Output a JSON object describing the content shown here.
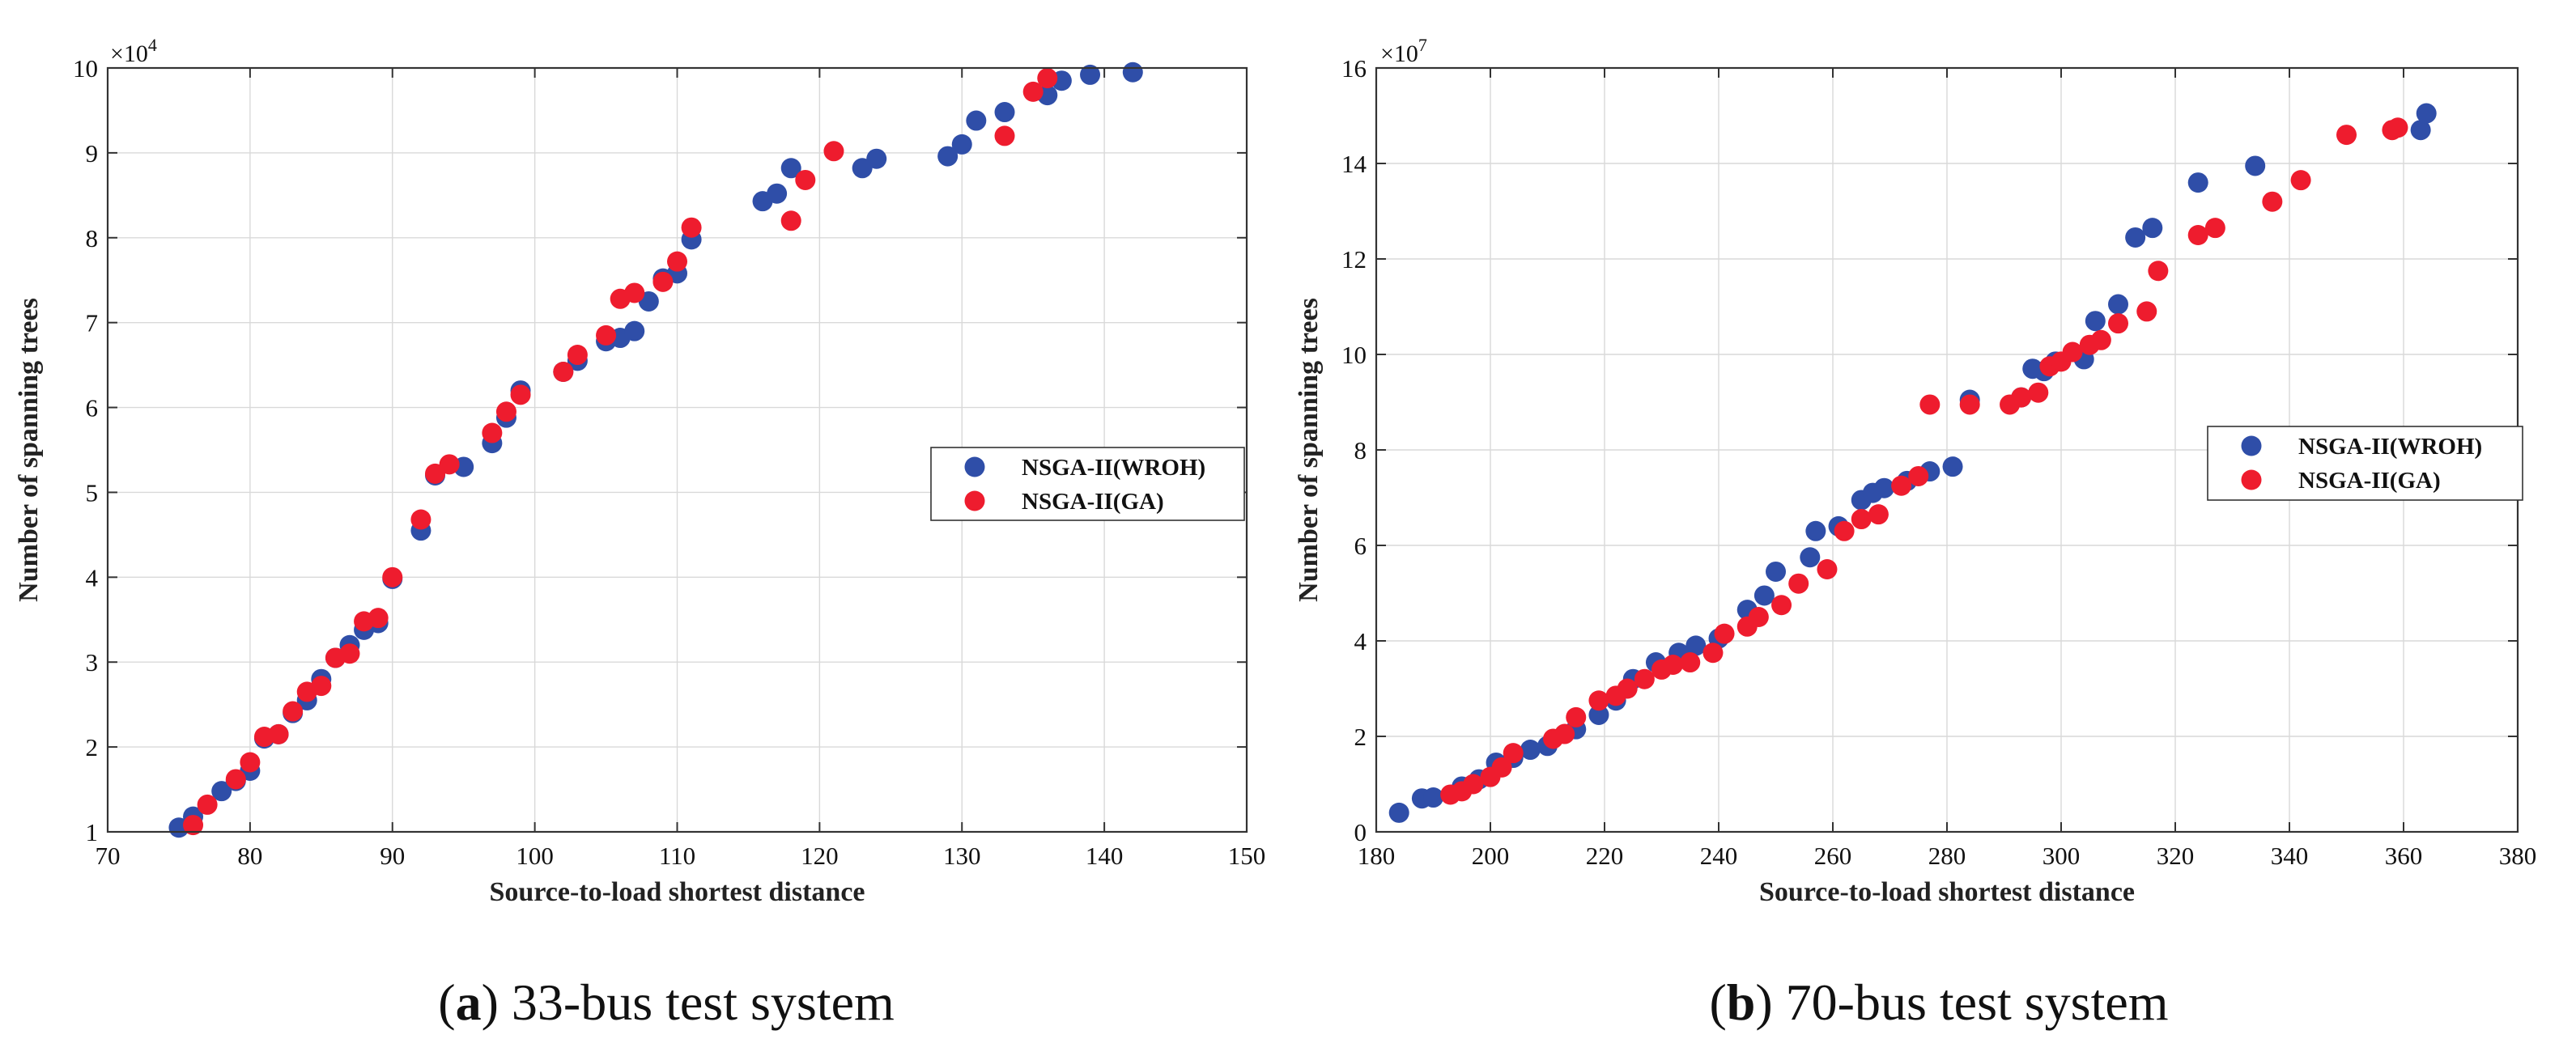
{
  "colors": {
    "wroh": "#2f4ea8",
    "ga": "#ee1c2e"
  },
  "chart_data": [
    {
      "type": "scatter",
      "title": "",
      "caption_letter": "a",
      "caption_text": "33-bus test system",
      "xlabel": "Source-to-load shortest distance",
      "ylabel": "Number of spanning trees",
      "exponent_prefix": "×10",
      "exponent_power": "4",
      "xlim": [
        70,
        150
      ],
      "ylim": [
        1,
        10
      ],
      "xticks": [
        70,
        80,
        90,
        100,
        110,
        120,
        130,
        140,
        150
      ],
      "yticks": [
        1,
        2,
        3,
        4,
        5,
        6,
        7,
        8,
        9,
        10
      ],
      "grid": true,
      "legend_position": "right-middle",
      "series": [
        {
          "name": "NSGA-II(WROH)",
          "color_key": "wroh",
          "points": [
            [
              75,
              1.05
            ],
            [
              76,
              1.18
            ],
            [
              78,
              1.48
            ],
            [
              79,
              1.6
            ],
            [
              80,
              1.72
            ],
            [
              81,
              2.1
            ],
            [
              82,
              2.15
            ],
            [
              83,
              2.4
            ],
            [
              84,
              2.55
            ],
            [
              85,
              2.8
            ],
            [
              86,
              3.05
            ],
            [
              87,
              3.2
            ],
            [
              88,
              3.38
            ],
            [
              89,
              3.46
            ],
            [
              90,
              3.98
            ],
            [
              92,
              4.55
            ],
            [
              93,
              5.2
            ],
            [
              95,
              5.3
            ],
            [
              97,
              5.58
            ],
            [
              98,
              5.88
            ],
            [
              99,
              6.2
            ],
            [
              102,
              6.42
            ],
            [
              103,
              6.55
            ],
            [
              105,
              6.78
            ],
            [
              106,
              6.82
            ],
            [
              107,
              6.9
            ],
            [
              108,
              7.25
            ],
            [
              109,
              7.52
            ],
            [
              110,
              7.58
            ],
            [
              111,
              7.98
            ],
            [
              116,
              8.43
            ],
            [
              117,
              8.52
            ],
            [
              118,
              8.82
            ],
            [
              123,
              8.82
            ],
            [
              124,
              8.93
            ],
            [
              129,
              8.96
            ],
            [
              130,
              9.1
            ],
            [
              131,
              9.38
            ],
            [
              133,
              9.48
            ],
            [
              136,
              9.68
            ],
            [
              137,
              9.85
            ],
            [
              139,
              9.92
            ],
            [
              142,
              9.95
            ]
          ]
        },
        {
          "name": "NSGA-II(GA)",
          "color_key": "ga",
          "points": [
            [
              76,
              1.08
            ],
            [
              77,
              1.32
            ],
            [
              79,
              1.62
            ],
            [
              80,
              1.82
            ],
            [
              81,
              2.12
            ],
            [
              82,
              2.15
            ],
            [
              83,
              2.42
            ],
            [
              84,
              2.65
            ],
            [
              85,
              2.72
            ],
            [
              86,
              3.05
            ],
            [
              87,
              3.1
            ],
            [
              88,
              3.48
            ],
            [
              89,
              3.52
            ],
            [
              90,
              4.0
            ],
            [
              92,
              4.68
            ],
            [
              93,
              5.22
            ],
            [
              94,
              5.33
            ],
            [
              97,
              5.7
            ],
            [
              98,
              5.95
            ],
            [
              99,
              6.15
            ],
            [
              102,
              6.42
            ],
            [
              103,
              6.62
            ],
            [
              105,
              6.85
            ],
            [
              106,
              7.28
            ],
            [
              107,
              7.35
            ],
            [
              109,
              7.48
            ],
            [
              110,
              7.72
            ],
            [
              111,
              8.12
            ],
            [
              118,
              8.2
            ],
            [
              119,
              8.68
            ],
            [
              121,
              9.02
            ],
            [
              133,
              9.2
            ],
            [
              135,
              9.72
            ],
            [
              136,
              9.88
            ]
          ]
        }
      ]
    },
    {
      "type": "scatter",
      "title": "",
      "caption_letter": "b",
      "caption_text": "70-bus test system",
      "xlabel": "Source-to-load shortest distance",
      "ylabel": "Number of spanning trees",
      "exponent_prefix": "×10",
      "exponent_power": "7",
      "xlim": [
        180,
        380
      ],
      "ylim": [
        0,
        16
      ],
      "xticks": [
        180,
        200,
        220,
        240,
        260,
        280,
        300,
        320,
        340,
        360,
        380
      ],
      "yticks": [
        0,
        2,
        4,
        6,
        8,
        10,
        12,
        14,
        16
      ],
      "grid": true,
      "legend_position": "right-middle",
      "series": [
        {
          "name": "NSGA-II(WROH)",
          "color_key": "wroh",
          "points": [
            [
              184,
              0.4
            ],
            [
              188,
              0.7
            ],
            [
              190,
              0.72
            ],
            [
              195,
              0.95
            ],
            [
              198,
              1.1
            ],
            [
              201,
              1.45
            ],
            [
              204,
              1.55
            ],
            [
              207,
              1.72
            ],
            [
              210,
              1.8
            ],
            [
              215,
              2.15
            ],
            [
              219,
              2.45
            ],
            [
              222,
              2.75
            ],
            [
              225,
              3.2
            ],
            [
              229,
              3.55
            ],
            [
              233,
              3.75
            ],
            [
              236,
              3.9
            ],
            [
              240,
              4.05
            ],
            [
              245,
              4.65
            ],
            [
              248,
              4.95
            ],
            [
              250,
              5.45
            ],
            [
              256,
              5.75
            ],
            [
              257,
              6.3
            ],
            [
              261,
              6.4
            ],
            [
              265,
              6.95
            ],
            [
              267,
              7.1
            ],
            [
              269,
              7.2
            ],
            [
              273,
              7.35
            ],
            [
              277,
              7.55
            ],
            [
              281,
              7.65
            ],
            [
              284,
              9.05
            ],
            [
              293,
              9.1
            ],
            [
              295,
              9.7
            ],
            [
              297,
              9.65
            ],
            [
              299,
              9.85
            ],
            [
              304,
              9.9
            ],
            [
              306,
              10.7
            ],
            [
              310,
              11.05
            ],
            [
              313,
              12.45
            ],
            [
              316,
              12.65
            ],
            [
              324,
              13.6
            ],
            [
              334,
              13.95
            ],
            [
              363,
              14.7
            ],
            [
              364,
              15.05
            ]
          ]
        },
        {
          "name": "NSGA-II(GA)",
          "color_key": "ga",
          "points": [
            [
              193,
              0.78
            ],
            [
              195,
              0.85
            ],
            [
              197,
              1.0
            ],
            [
              200,
              1.15
            ],
            [
              202,
              1.35
            ],
            [
              204,
              1.65
            ],
            [
              211,
              1.95
            ],
            [
              213,
              2.05
            ],
            [
              215,
              2.4
            ],
            [
              219,
              2.75
            ],
            [
              222,
              2.85
            ],
            [
              224,
              3.0
            ],
            [
              227,
              3.2
            ],
            [
              230,
              3.4
            ],
            [
              232,
              3.5
            ],
            [
              235,
              3.55
            ],
            [
              239,
              3.75
            ],
            [
              241,
              4.15
            ],
            [
              245,
              4.3
            ],
            [
              247,
              4.5
            ],
            [
              251,
              4.75
            ],
            [
              254,
              5.2
            ],
            [
              259,
              5.5
            ],
            [
              262,
              6.3
            ],
            [
              265,
              6.55
            ],
            [
              268,
              6.65
            ],
            [
              272,
              7.25
            ],
            [
              275,
              7.45
            ],
            [
              277,
              8.95
            ],
            [
              284,
              8.95
            ],
            [
              291,
              8.95
            ],
            [
              293,
              9.1
            ],
            [
              296,
              9.2
            ],
            [
              298,
              9.75
            ],
            [
              300,
              9.85
            ],
            [
              302,
              10.05
            ],
            [
              305,
              10.2
            ],
            [
              307,
              10.3
            ],
            [
              310,
              10.65
            ],
            [
              315,
              10.9
            ],
            [
              317,
              11.75
            ],
            [
              324,
              12.5
            ],
            [
              327,
              12.65
            ],
            [
              337,
              13.2
            ],
            [
              342,
              13.65
            ],
            [
              350,
              14.6
            ],
            [
              358,
              14.7
            ],
            [
              359,
              14.75
            ]
          ]
        }
      ]
    }
  ]
}
